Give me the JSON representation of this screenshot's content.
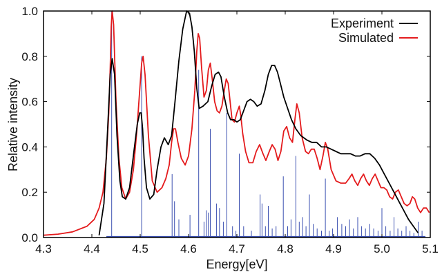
{
  "chart_data": {
    "type": "line",
    "title": "",
    "xlabel": "Energy[eV]",
    "ylabel": "Relative intensity",
    "xlim": [
      4.3,
      5.1
    ],
    "ylim": [
      0.0,
      1.0
    ],
    "x_ticks": [
      "4.3",
      "4.4",
      "4.5",
      "4.6",
      "4.7",
      "4.8",
      "4.9",
      "5.0",
      "5.1"
    ],
    "y_ticks": [
      "0.0",
      "0.2",
      "0.4",
      "0.6",
      "0.8",
      "1.0"
    ],
    "grid": false,
    "legend_position": "top-right",
    "colors": {
      "experiment": "#000000",
      "simulated": "#e41a1c",
      "sticks": "#3a4fb0"
    },
    "series": [
      {
        "name": "Experiment",
        "x": [
          4.415,
          4.425,
          4.432,
          4.438,
          4.442,
          4.447,
          4.452,
          4.458,
          4.463,
          4.47,
          4.478,
          4.487,
          4.494,
          4.499,
          4.502,
          4.505,
          4.508,
          4.513,
          4.52,
          4.528,
          4.535,
          4.543,
          4.55,
          4.558,
          4.565,
          4.572,
          4.58,
          4.588,
          4.596,
          4.602,
          4.607,
          4.612,
          4.617,
          4.622,
          4.63,
          4.64,
          4.648,
          4.655,
          4.662,
          4.667,
          4.674,
          4.681,
          4.687,
          4.694,
          4.7,
          4.707,
          4.714,
          4.721,
          4.728,
          4.735,
          4.742,
          4.75,
          4.758,
          4.765,
          4.772,
          4.778,
          4.784,
          4.79,
          4.797,
          4.805,
          4.813,
          4.822,
          4.832,
          4.845,
          4.855,
          4.865,
          4.875,
          4.885,
          4.895,
          4.905,
          4.915,
          4.925,
          4.935,
          4.945,
          4.955,
          4.965,
          4.975,
          4.985,
          4.995,
          5.005,
          5.015,
          5.025,
          5.035,
          5.045,
          5.055,
          5.065,
          5.075
        ],
        "y": [
          0.01,
          0.15,
          0.45,
          0.72,
          0.79,
          0.72,
          0.45,
          0.25,
          0.18,
          0.17,
          0.22,
          0.38,
          0.5,
          0.55,
          0.55,
          0.48,
          0.35,
          0.22,
          0.17,
          0.19,
          0.3,
          0.4,
          0.44,
          0.41,
          0.45,
          0.6,
          0.78,
          0.92,
          1.0,
          0.99,
          0.93,
          0.82,
          0.66,
          0.57,
          0.58,
          0.6,
          0.67,
          0.72,
          0.73,
          0.71,
          0.62,
          0.55,
          0.52,
          0.52,
          0.51,
          0.52,
          0.56,
          0.6,
          0.61,
          0.6,
          0.58,
          0.59,
          0.65,
          0.72,
          0.76,
          0.76,
          0.73,
          0.68,
          0.62,
          0.57,
          0.52,
          0.48,
          0.45,
          0.43,
          0.42,
          0.42,
          0.4,
          0.4,
          0.39,
          0.38,
          0.37,
          0.37,
          0.37,
          0.36,
          0.36,
          0.37,
          0.37,
          0.35,
          0.32,
          0.28,
          0.24,
          0.2,
          0.16,
          0.12,
          0.08,
          0.05,
          0.02
        ]
      },
      {
        "name": "Simulated",
        "x": [
          4.3,
          4.33,
          4.36,
          4.39,
          4.405,
          4.415,
          4.423,
          4.43,
          4.435,
          4.438,
          4.44,
          4.442,
          4.445,
          4.45,
          4.456,
          4.462,
          4.47,
          4.478,
          4.486,
          4.493,
          4.499,
          4.503,
          4.506,
          4.51,
          4.517,
          4.525,
          4.535,
          4.545,
          4.553,
          4.56,
          4.565,
          4.569,
          4.573,
          4.578,
          4.585,
          4.593,
          4.6,
          4.607,
          4.613,
          4.617,
          4.62,
          4.623,
          4.627,
          4.632,
          4.637,
          4.641,
          4.645,
          4.649,
          4.654,
          4.659,
          4.664,
          4.669,
          4.674,
          4.678,
          4.682,
          4.686,
          4.69,
          4.695,
          4.7,
          4.705,
          4.708,
          4.712,
          4.718,
          4.725,
          4.733,
          4.74,
          4.747,
          4.754,
          4.76,
          4.767,
          4.773,
          4.779,
          4.785,
          4.791,
          4.797,
          4.803,
          4.809,
          4.815,
          4.82,
          4.824,
          4.829,
          4.835,
          4.842,
          4.848,
          4.854,
          4.86,
          4.866,
          4.872,
          4.878,
          4.883,
          4.888,
          4.895,
          4.905,
          4.915,
          4.925,
          4.932,
          4.938,
          4.944,
          4.95,
          4.956,
          4.962,
          4.968,
          4.974,
          4.98,
          4.986,
          4.992,
          4.998,
          5.004,
          5.01,
          5.016,
          5.022,
          5.028,
          5.034,
          5.04,
          5.046,
          5.052,
          5.058,
          5.063,
          5.068,
          5.074,
          5.08,
          5.086,
          5.092,
          5.098
        ],
        "y": [
          0.01,
          0.015,
          0.025,
          0.05,
          0.08,
          0.13,
          0.2,
          0.35,
          0.55,
          0.75,
          0.93,
          1.0,
          0.94,
          0.6,
          0.35,
          0.22,
          0.17,
          0.2,
          0.3,
          0.47,
          0.65,
          0.77,
          0.8,
          0.72,
          0.45,
          0.25,
          0.2,
          0.22,
          0.26,
          0.32,
          0.42,
          0.48,
          0.48,
          0.42,
          0.35,
          0.32,
          0.36,
          0.48,
          0.65,
          0.82,
          0.9,
          0.88,
          0.75,
          0.62,
          0.65,
          0.74,
          0.77,
          0.7,
          0.6,
          0.56,
          0.55,
          0.58,
          0.65,
          0.7,
          0.68,
          0.6,
          0.52,
          0.51,
          0.55,
          0.58,
          0.54,
          0.46,
          0.38,
          0.33,
          0.33,
          0.38,
          0.41,
          0.37,
          0.34,
          0.38,
          0.41,
          0.39,
          0.34,
          0.38,
          0.47,
          0.49,
          0.44,
          0.42,
          0.52,
          0.59,
          0.55,
          0.44,
          0.38,
          0.37,
          0.39,
          0.39,
          0.35,
          0.3,
          0.36,
          0.42,
          0.39,
          0.3,
          0.25,
          0.24,
          0.24,
          0.26,
          0.28,
          0.25,
          0.23,
          0.26,
          0.28,
          0.25,
          0.23,
          0.26,
          0.28,
          0.25,
          0.22,
          0.22,
          0.21,
          0.18,
          0.17,
          0.2,
          0.21,
          0.18,
          0.15,
          0.14,
          0.15,
          0.18,
          0.17,
          0.13,
          0.11,
          0.13,
          0.13,
          0.11
        ]
      },
      {
        "type": "sticks",
        "x": [
          4.441,
          4.503,
          4.566,
          4.571,
          4.58,
          4.603,
          4.621,
          4.632,
          4.637,
          4.641,
          4.645,
          4.658,
          4.664,
          4.672,
          4.679,
          4.691,
          4.698,
          4.705,
          4.714,
          4.73,
          4.748,
          4.752,
          4.759,
          4.765,
          4.773,
          4.781,
          4.796,
          4.805,
          4.812,
          4.822,
          4.829,
          4.836,
          4.843,
          4.85,
          4.858,
          4.866,
          4.875,
          4.883,
          4.891,
          4.898,
          4.908,
          4.917,
          4.925,
          4.933,
          4.941,
          4.95,
          4.958,
          4.966,
          4.975,
          4.983,
          4.992,
          5.0,
          5.008,
          5.017,
          5.025,
          5.033,
          5.041,
          5.05,
          5.058,
          5.066,
          5.075,
          5.083
        ],
        "y": [
          1.0,
          0.8,
          0.28,
          0.16,
          0.08,
          0.1,
          0.74,
          0.07,
          0.12,
          0.11,
          0.48,
          0.15,
          0.13,
          0.07,
          0.55,
          0.05,
          0.03,
          0.37,
          0.05,
          0.03,
          0.19,
          0.15,
          0.05,
          0.14,
          0.04,
          0.05,
          0.27,
          0.05,
          0.08,
          0.36,
          0.07,
          0.09,
          0.05,
          0.19,
          0.06,
          0.04,
          0.03,
          0.26,
          0.03,
          0.04,
          0.09,
          0.06,
          0.05,
          0.08,
          0.04,
          0.09,
          0.05,
          0.04,
          0.06,
          0.04,
          0.03,
          0.13,
          0.05,
          0.03,
          0.09,
          0.04,
          0.03,
          0.05,
          0.03,
          0.02,
          0.07,
          0.03
        ]
      }
    ]
  }
}
